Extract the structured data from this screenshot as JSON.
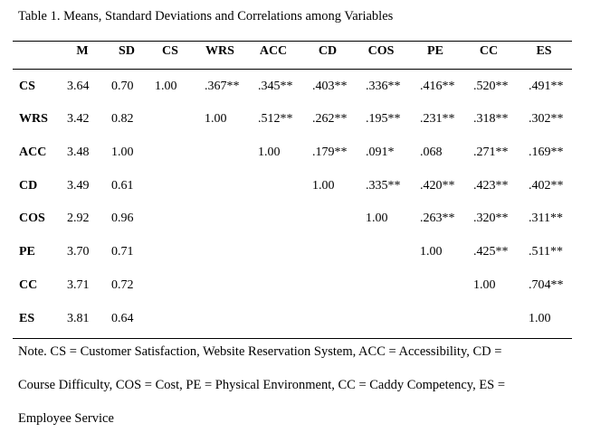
{
  "caption": "Table 1. Means, Standard Deviations and Correlations among Variables",
  "table": {
    "headers": [
      "M",
      "SD",
      "CS",
      "WRS",
      "ACC",
      "CD",
      "COS",
      "PE",
      "CC",
      "ES"
    ],
    "rows": [
      {
        "label": "CS",
        "cells": [
          "3.64",
          "0.70",
          "1.00",
          ".367**",
          ".345**",
          ".403**",
          ".336**",
          ".416**",
          ".520**",
          ".491**"
        ]
      },
      {
        "label": "WRS",
        "cells": [
          "3.42",
          "0.82",
          "",
          "1.00",
          ".512**",
          ".262**",
          ".195**",
          ".231**",
          ".318**",
          ".302**"
        ]
      },
      {
        "label": "ACC",
        "cells": [
          "3.48",
          "1.00",
          "",
          "",
          "1.00",
          ".179**",
          ".091*",
          ".068",
          ".271**",
          ".169**"
        ]
      },
      {
        "label": "CD",
        "cells": [
          "3.49",
          "0.61",
          "",
          "",
          "",
          "1.00",
          ".335**",
          ".420**",
          ".423**",
          ".402**"
        ]
      },
      {
        "label": "COS",
        "cells": [
          "2.92",
          "0.96",
          "",
          "",
          "",
          "",
          "1.00",
          ".263**",
          ".320**",
          ".311**"
        ]
      },
      {
        "label": "PE",
        "cells": [
          "3.70",
          "0.71",
          "",
          "",
          "",
          "",
          "",
          "1.00",
          ".425**",
          ".511**"
        ]
      },
      {
        "label": "CC",
        "cells": [
          "3.71",
          "0.72",
          "",
          "",
          "",
          "",
          "",
          "",
          "1.00",
          ".704**"
        ]
      },
      {
        "label": "ES",
        "cells": [
          "3.81",
          "0.64",
          "",
          "",
          "",
          "",
          "",
          "",
          "",
          "1.00"
        ]
      }
    ]
  },
  "note": {
    "line1": "Note. CS = Customer Satisfaction, Website Reservation System, ACC = Accessibility, CD =",
    "line2": "Course Difficulty, COS = Cost, PE = Physical Environment, CC = Caddy Competency, ES =",
    "line3": "Employee Service"
  }
}
